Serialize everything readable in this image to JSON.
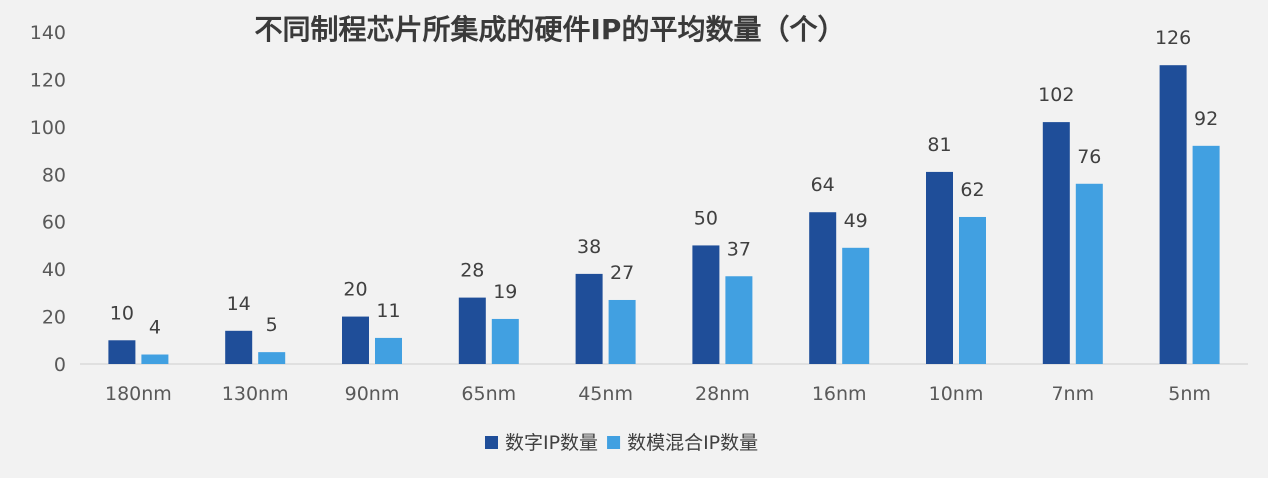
{
  "chart_data": {
    "type": "bar",
    "title": "不同制程芯片所集成的硬件IP的平均数量（个）",
    "xlabel": "",
    "ylabel": "",
    "categories": [
      "180nm",
      "130nm",
      "90nm",
      "65nm",
      "45nm",
      "28nm",
      "16nm",
      "10nm",
      "7nm",
      "5nm"
    ],
    "series": [
      {
        "name": "数字IP数量",
        "values": [
          10,
          14,
          20,
          28,
          38,
          50,
          64,
          81,
          102,
          126
        ],
        "color": "#1f4e99"
      },
      {
        "name": "数模混合IP数量",
        "values": [
          4,
          5,
          11,
          19,
          27,
          37,
          49,
          62,
          76,
          92
        ],
        "color": "#41a0e1"
      }
    ],
    "ylim": [
      0,
      140
    ],
    "yticks": [
      0,
      20,
      40,
      60,
      80,
      100,
      120,
      140
    ],
    "grid": false,
    "legend_position": "bottom",
    "data_labels": true
  }
}
